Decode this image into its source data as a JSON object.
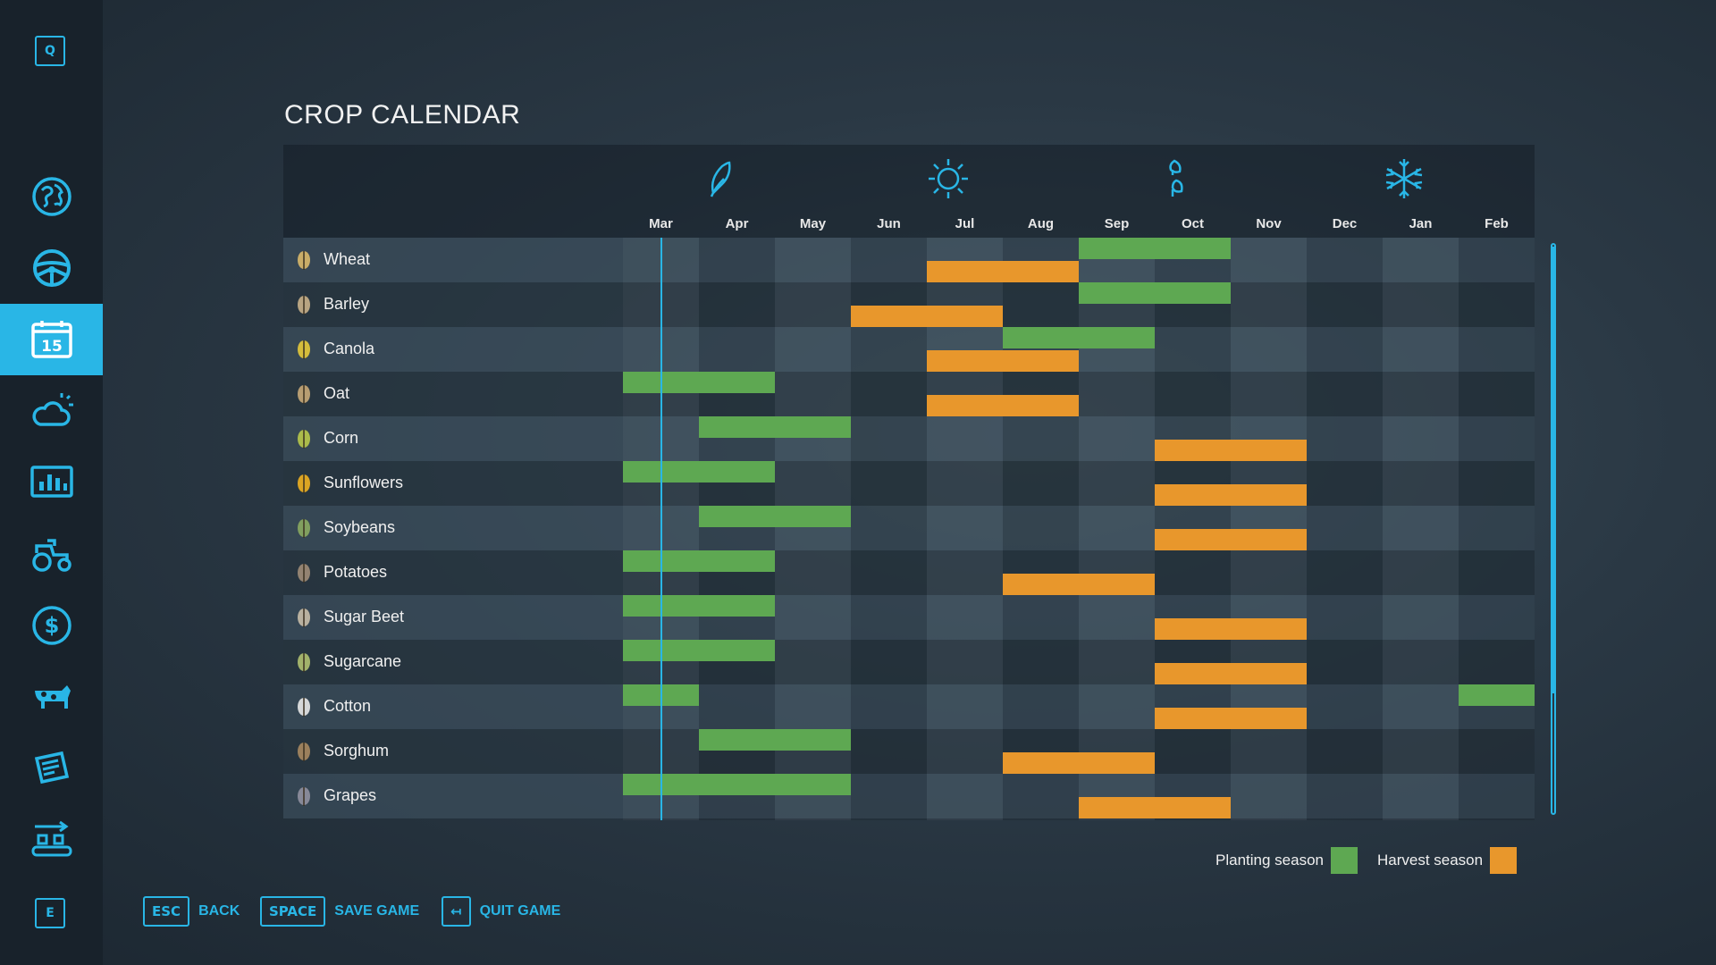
{
  "sidebar": {
    "top_key": "Q",
    "bottom_key": "E",
    "items": [
      {
        "icon": "globe-map-icon"
      },
      {
        "icon": "steering-wheel-icon"
      },
      {
        "icon": "calendar-icon",
        "label": "15",
        "active": true
      },
      {
        "icon": "weather-icon"
      },
      {
        "icon": "statistics-icon"
      },
      {
        "icon": "tractor-icon"
      },
      {
        "icon": "dollar-icon"
      },
      {
        "icon": "cow-icon"
      },
      {
        "icon": "contracts-icon"
      },
      {
        "icon": "production-icon"
      }
    ]
  },
  "title": "CROP CALENDAR",
  "seasons": [
    {
      "icon": "spring-leaf-icon",
      "month_index": 1
    },
    {
      "icon": "summer-sun-icon",
      "month_index": 4
    },
    {
      "icon": "autumn-leaves-icon",
      "month_index": 7
    },
    {
      "icon": "winter-snowflake-icon",
      "month_index": 10
    }
  ],
  "months": [
    "Mar",
    "Apr",
    "May",
    "Jun",
    "Jul",
    "Aug",
    "Sep",
    "Oct",
    "Nov",
    "Dec",
    "Jan",
    "Feb"
  ],
  "current_month_position": 0.5,
  "crops": [
    {
      "name": "Wheat",
      "icon": "wheat-icon",
      "planting": [
        [
          6,
          8
        ]
      ],
      "harvest": [
        [
          4,
          6
        ]
      ]
    },
    {
      "name": "Barley",
      "icon": "barley-icon",
      "planting": [
        [
          6,
          8
        ]
      ],
      "harvest": [
        [
          3,
          5
        ]
      ]
    },
    {
      "name": "Canola",
      "icon": "canola-icon",
      "planting": [
        [
          5,
          7
        ]
      ],
      "harvest": [
        [
          4,
          6
        ]
      ]
    },
    {
      "name": "Oat",
      "icon": "oat-icon",
      "planting": [
        [
          0,
          2
        ]
      ],
      "harvest": [
        [
          4,
          6
        ]
      ]
    },
    {
      "name": "Corn",
      "icon": "corn-icon",
      "planting": [
        [
          1,
          3
        ]
      ],
      "harvest": [
        [
          7,
          9
        ]
      ]
    },
    {
      "name": "Sunflowers",
      "icon": "sunflower-icon",
      "planting": [
        [
          0,
          2
        ]
      ],
      "harvest": [
        [
          7,
          9
        ]
      ]
    },
    {
      "name": "Soybeans",
      "icon": "soybean-icon",
      "planting": [
        [
          1,
          3
        ]
      ],
      "harvest": [
        [
          7,
          9
        ]
      ]
    },
    {
      "name": "Potatoes",
      "icon": "potato-icon",
      "planting": [
        [
          0,
          2
        ]
      ],
      "harvest": [
        [
          5,
          7
        ]
      ]
    },
    {
      "name": "Sugar Beet",
      "icon": "sugar-beet-icon",
      "planting": [
        [
          0,
          2
        ]
      ],
      "harvest": [
        [
          7,
          9
        ]
      ]
    },
    {
      "name": "Sugarcane",
      "icon": "sugarcane-icon",
      "planting": [
        [
          0,
          2
        ]
      ],
      "harvest": [
        [
          7,
          9
        ]
      ]
    },
    {
      "name": "Cotton",
      "icon": "cotton-icon",
      "planting": [
        [
          0,
          1
        ],
        [
          11,
          12
        ]
      ],
      "harvest": [
        [
          7,
          9
        ]
      ]
    },
    {
      "name": "Sorghum",
      "icon": "sorghum-icon",
      "planting": [
        [
          1,
          3
        ]
      ],
      "harvest": [
        [
          5,
          7
        ]
      ]
    },
    {
      "name": "Grapes",
      "icon": "grapes-icon",
      "planting": [
        [
          0,
          3
        ]
      ],
      "harvest": [
        [
          6,
          8
        ]
      ]
    }
  ],
  "legend": {
    "planting_label": "Planting season",
    "harvest_label": "Harvest season",
    "planting_color": "#5ea852",
    "harvest_color": "#e8972c"
  },
  "footer": [
    {
      "key": "ESC",
      "label": "BACK"
    },
    {
      "key": "SPACE",
      "label": "SAVE GAME"
    },
    {
      "key": "↤",
      "label": "QUIT GAME"
    }
  ],
  "colors": {
    "accent": "#29b6e6"
  }
}
